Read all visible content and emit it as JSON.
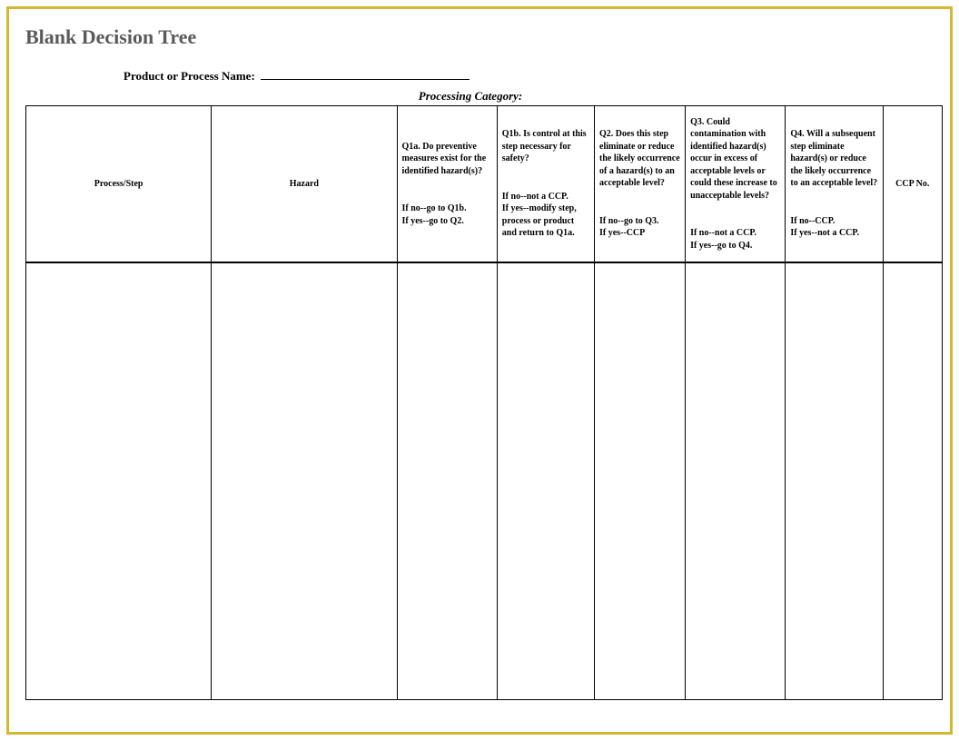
{
  "title": "Blank Decision Tree",
  "fields": {
    "product_label": "Product or Process Name:",
    "category_label": "Processing Category:"
  },
  "table": {
    "columns": [
      {
        "header": "Process/Step",
        "cls": "col-process",
        "centered": true
      },
      {
        "header": "Hazard",
        "cls": "col-hazard",
        "centered": true
      },
      {
        "cls": "col-q1a",
        "main": "Q1a. Do preventive measures exist for the identified hazard(s)?",
        "follow": "If no--go to Q1b.\nIf yes--go to Q2."
      },
      {
        "cls": "col-q1b",
        "main": "Q1b. Is control at this step necessary for safety?",
        "follow": "If no--not a CCP.\nIf yes--modify step, process or product and return to Q1a."
      },
      {
        "cls": "col-q2",
        "main": "Q2. Does this step eliminate or reduce the likely occurrence of a hazard(s) to an acceptable level?",
        "follow": "If no--go to Q3.\nIf yes--CCP"
      },
      {
        "cls": "col-q3",
        "main": "Q3. Could contamination with identified hazard(s) occur in excess of acceptable levels or could these increase to unacceptable levels?",
        "follow": "If no--not a CCP.\nIf yes--go to Q4."
      },
      {
        "cls": "col-q4",
        "main": "Q4. Will a subsequent step eliminate hazard(s) or reduce the likely occurrence to an acceptable level?",
        "follow": "If no--CCP.\nIf yes--not a CCP."
      },
      {
        "header": "CCP No.",
        "cls": "col-ccp",
        "centered": true
      }
    ],
    "border_color": "#000000",
    "frame_color": "#d4b830"
  }
}
